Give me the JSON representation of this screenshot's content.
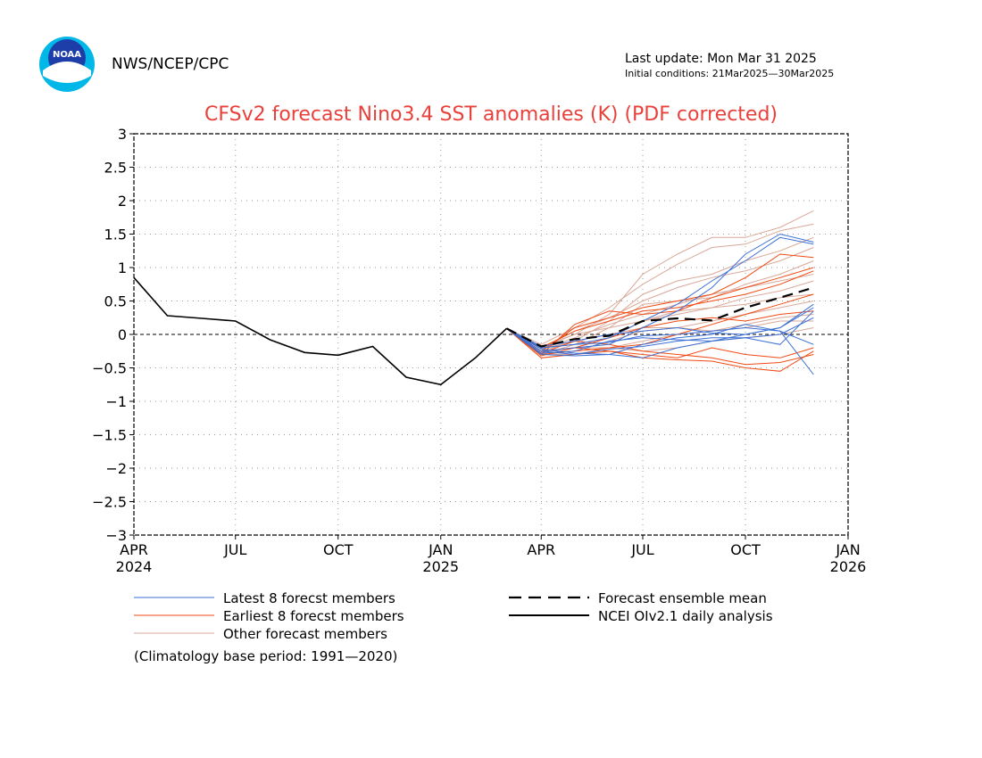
{
  "header": {
    "logo_text": "NOAA",
    "agency": "NWS/NCEP/CPC",
    "last_update": "Last update: Mon Mar 31 2025",
    "initial_conditions": "Initial conditions: 21Mar2025—30Mar2025"
  },
  "colors": {
    "title": "#e8413c",
    "latest_members": "#3b6fd4",
    "earliest_members": "#ef4a14",
    "other_members": "#d9a898",
    "mean": "#000000",
    "observed": "#000000"
  },
  "chart_data": {
    "type": "line",
    "title": "CFSv2 forecast Nino3.4 SST anomalies (K) (PDF corrected)",
    "ylim": [
      -3,
      3
    ],
    "y_ticks": [
      "3",
      "2.5",
      "2",
      "1.5",
      "1",
      "0.5",
      "0",
      "−0.5",
      "−1",
      "−1.5",
      "−2",
      "−2.5",
      "−3"
    ],
    "x_ticks": [
      {
        "label": "APR",
        "year": "2024"
      },
      {
        "label": "JUL",
        "year": ""
      },
      {
        "label": "OCT",
        "year": ""
      },
      {
        "label": "JAN",
        "year": "2025"
      },
      {
        "label": "APR",
        "year": ""
      },
      {
        "label": "JUL",
        "year": ""
      },
      {
        "label": "OCT",
        "year": ""
      },
      {
        "label": "JAN",
        "year": "2026"
      }
    ],
    "grid": true,
    "zero_line": true,
    "observed": {
      "name": "NCEI OIv2.1 daily analysis",
      "x": [
        "2024-04-01",
        "2024-05-01",
        "2024-06-01",
        "2024-07-01",
        "2024-08-01",
        "2024-09-01",
        "2024-10-01",
        "2024-11-01",
        "2024-12-01",
        "2025-01-01",
        "2025-02-01",
        "2025-03-01"
      ],
      "y": [
        0.85,
        0.28,
        0.24,
        0.2,
        -0.08,
        -0.27,
        -0.31,
        -0.18,
        -0.64,
        -0.75,
        -0.35,
        0.09
      ]
    },
    "forecast_x": [
      "2025-03-01",
      "2025-04-01",
      "2025-05-01",
      "2025-06-01",
      "2025-07-01",
      "2025-08-01",
      "2025-09-01",
      "2025-10-01",
      "2025-11-01",
      "2025-12-01"
    ],
    "ensemble_mean": {
      "name": "Forecast ensemble mean",
      "y": [
        0.09,
        -0.18,
        -0.07,
        -0.02,
        0.2,
        0.24,
        0.21,
        0.4,
        0.55,
        0.7
      ]
    },
    "latest_members": {
      "name": "Latest 8 forecst members",
      "values": [
        [
          0.09,
          -0.25,
          -0.2,
          -0.15,
          0.1,
          0.35,
          0.7,
          1.2,
          1.5,
          1.38
        ],
        [
          0.09,
          -0.2,
          -0.15,
          -0.05,
          0.2,
          0.45,
          0.8,
          1.1,
          1.45,
          1.35
        ],
        [
          0.09,
          -0.3,
          -0.32,
          -0.3,
          -0.15,
          -0.05,
          0.0,
          0.15,
          0.05,
          -0.6
        ],
        [
          0.09,
          -0.22,
          -0.28,
          -0.3,
          -0.35,
          -0.2,
          -0.1,
          0.0,
          0.1,
          0.45
        ],
        [
          0.09,
          -0.28,
          -0.25,
          -0.1,
          -0.05,
          -0.08,
          -0.1,
          -0.05,
          0.0,
          0.25
        ],
        [
          0.09,
          -0.2,
          -0.15,
          -0.12,
          -0.02,
          0.0,
          0.05,
          0.1,
          0.05,
          -0.15
        ],
        [
          0.09,
          -0.25,
          -0.3,
          -0.22,
          -0.18,
          -0.1,
          -0.05,
          -0.05,
          -0.15,
          0.35
        ],
        [
          0.09,
          -0.18,
          -0.1,
          0.0,
          0.05,
          0.1,
          0.02,
          0.0,
          0.1,
          0.4
        ]
      ]
    },
    "earliest_members": {
      "name": "Earliest 8 forecst members",
      "values": [
        [
          0.09,
          -0.25,
          0.1,
          0.25,
          0.4,
          0.5,
          0.6,
          0.85,
          1.2,
          1.15
        ],
        [
          0.09,
          -0.3,
          0.15,
          0.35,
          0.3,
          0.35,
          0.55,
          0.7,
          0.85,
          1.0
        ],
        [
          0.09,
          -0.32,
          -0.2,
          -0.25,
          -0.35,
          -0.38,
          -0.4,
          -0.5,
          -0.55,
          -0.25
        ],
        [
          0.09,
          -0.28,
          -0.1,
          -0.15,
          -0.25,
          -0.3,
          -0.35,
          -0.45,
          -0.42,
          -0.3
        ],
        [
          0.09,
          -0.2,
          0.05,
          0.2,
          0.35,
          0.4,
          0.5,
          0.6,
          0.75,
          0.95
        ],
        [
          0.09,
          -0.3,
          -0.25,
          -0.2,
          -0.15,
          0.0,
          0.15,
          0.3,
          0.45,
          0.6
        ],
        [
          0.09,
          -0.25,
          -0.2,
          -0.05,
          0.1,
          0.2,
          0.25,
          0.2,
          0.3,
          0.35
        ],
        [
          0.09,
          -0.35,
          -0.3,
          -0.25,
          -0.3,
          -0.35,
          -0.2,
          -0.3,
          -0.35,
          -0.2
        ]
      ]
    },
    "other_members": {
      "name": "Other forecast members",
      "values": [
        [
          0.09,
          -0.2,
          0.0,
          0.3,
          0.9,
          1.2,
          1.45,
          1.45,
          1.6,
          1.85
        ],
        [
          0.09,
          -0.15,
          0.1,
          0.4,
          0.75,
          1.05,
          1.3,
          1.35,
          1.55,
          1.65
        ],
        [
          0.09,
          -0.25,
          -0.1,
          0.2,
          0.6,
          0.8,
          0.9,
          1.1,
          1.25,
          1.45
        ],
        [
          0.09,
          -0.2,
          0.05,
          0.25,
          0.5,
          0.7,
          0.85,
          0.95,
          1.1,
          1.3
        ],
        [
          0.09,
          -0.3,
          -0.15,
          0.1,
          0.45,
          0.5,
          0.55,
          0.75,
          0.9,
          1.1
        ],
        [
          0.09,
          -0.22,
          -0.05,
          0.15,
          0.3,
          0.45,
          0.6,
          0.7,
          0.8,
          0.9
        ],
        [
          0.09,
          -0.25,
          -0.2,
          -0.05,
          0.2,
          0.35,
          0.4,
          0.55,
          0.65,
          0.8
        ],
        [
          0.09,
          -0.18,
          0.0,
          0.1,
          0.2,
          0.3,
          0.4,
          0.45,
          0.55,
          0.6
        ],
        [
          0.09,
          -0.28,
          -0.25,
          -0.1,
          0.05,
          0.1,
          0.2,
          0.3,
          0.4,
          0.5
        ],
        [
          0.09,
          -0.3,
          -0.3,
          -0.2,
          -0.1,
          0.0,
          0.05,
          0.15,
          0.25,
          0.3
        ],
        [
          0.09,
          -0.22,
          -0.1,
          0.0,
          0.1,
          0.1,
          0.05,
          0.1,
          0.2,
          0.2
        ],
        [
          0.09,
          -0.26,
          -0.2,
          -0.2,
          -0.25,
          -0.2,
          -0.1,
          -0.05,
          0.0,
          0.1
        ]
      ]
    },
    "legend": {
      "position": "below-plot",
      "items": [
        {
          "label": "Latest 8 forecst members",
          "style": "latest"
        },
        {
          "label": "Earliest 8 forecst members",
          "style": "earliest"
        },
        {
          "label": "Other forecast members",
          "style": "other"
        },
        {
          "label": "Forecast ensemble mean",
          "style": "mean"
        },
        {
          "label": "NCEI OIv2.1 daily analysis",
          "style": "observed"
        }
      ]
    },
    "note": "(Climatology base period: 1991—2020)"
  }
}
